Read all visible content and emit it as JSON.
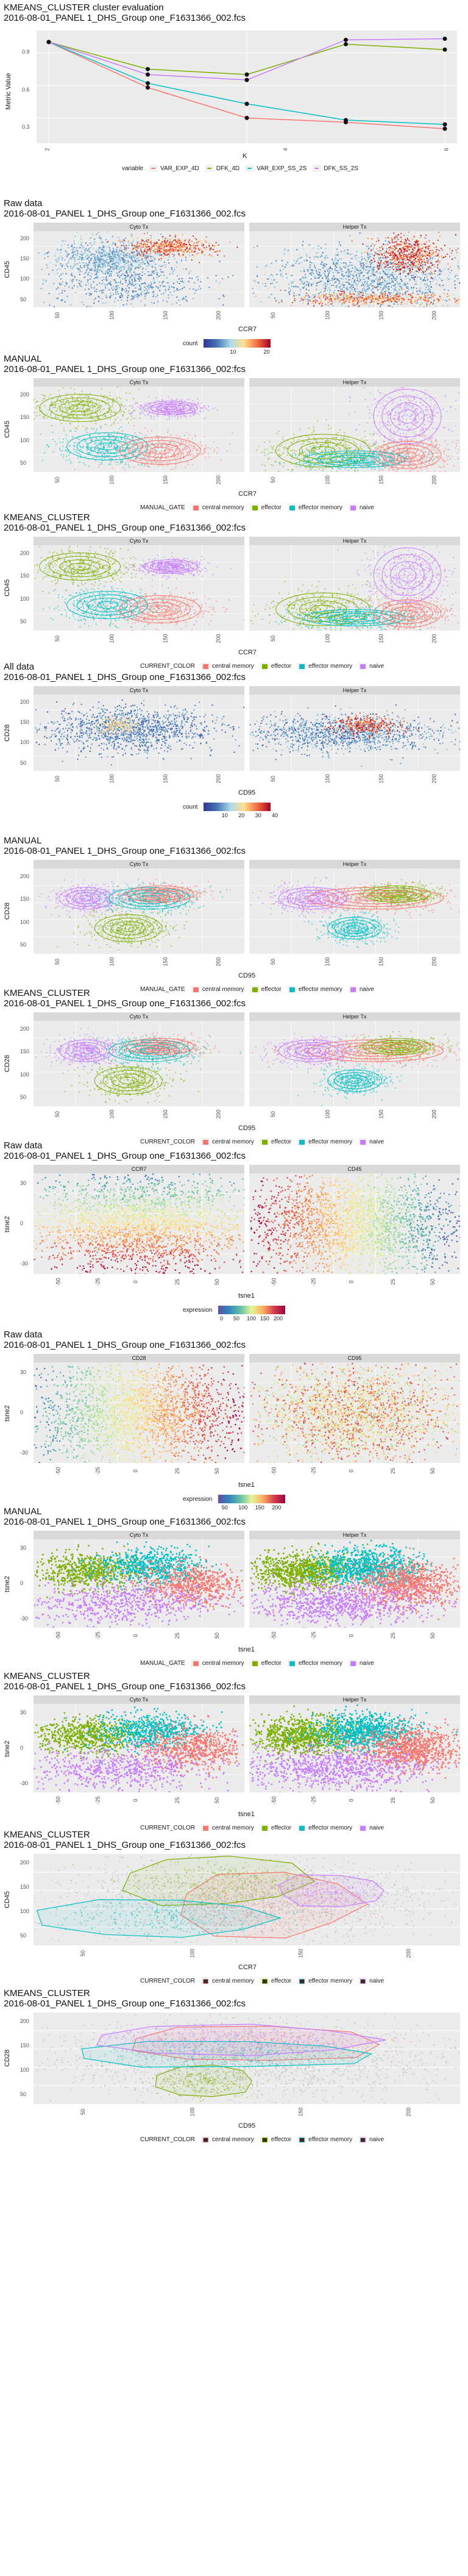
{
  "section1": {
    "title1": "KMEANS_CLUSTER cluster evaluation",
    "title2": "2016-08-01_PANEL 1_DHS_Group one_F1631366_002.fcs",
    "ylabel": "Metric Value",
    "xlabel": "K",
    "yticks": [
      "0.9",
      "0.6",
      "0.3"
    ],
    "xticks": [
      "2",
      "4",
      "6"
    ],
    "legend_title": "variable",
    "legend_items": [
      {
        "label": "VAR_EXP_4D",
        "color": "#f8766d"
      },
      {
        "label": "DFK_4D",
        "color": "#7cae00"
      },
      {
        "label": "VAR_EXP_SS_2S",
        "color": "#00bfc4"
      },
      {
        "label": "DFK_SS_2S",
        "color": "#c77cff"
      }
    ]
  },
  "chart_data": [
    {
      "type": "line",
      "title": "KMEANS_CLUSTER cluster evaluation",
      "xlabel": "K",
      "ylabel": "Metric Value",
      "x": [
        2,
        3,
        4,
        5,
        6
      ],
      "ylim": [
        0.15,
        1.05
      ],
      "series": [
        {
          "name": "VAR_EXP_4D",
          "values": [
            1.0,
            0.58,
            0.3,
            0.26,
            0.2
          ]
        },
        {
          "name": "DFK_4D",
          "values": [
            1.0,
            0.75,
            0.7,
            0.98,
            0.93
          ]
        },
        {
          "name": "VAR_EXP_SS_2S",
          "values": [
            1.0,
            0.62,
            0.43,
            0.28,
            0.24
          ]
        },
        {
          "name": "DFK_SS_2S",
          "values": [
            1.0,
            0.7,
            0.65,
            1.02,
            1.03
          ]
        }
      ]
    }
  ],
  "sections": [
    {
      "t1": "Raw data",
      "t2": "2016-08-01_PANEL 1_DHS_Group one_F1631366_002.fcs",
      "panels": [
        "Cyto Tx",
        "Helper Tx"
      ],
      "ylabel": "CD45",
      "xlabel": "CCR7",
      "legend_title": "count",
      "cbar_ticks": [
        "10",
        "20"
      ]
    },
    {
      "t1": "MANUAL",
      "t2": "2016-08-01_PANEL 1_DHS_Group one_F1631366_002:fcs",
      "panels": [
        "Cyto Tx",
        "Helper Tx"
      ],
      "ylabel": "CD45",
      "xlabel": "CCR7",
      "legend_title": "MANUAL_GATE"
    },
    {
      "t1": "KMEANS_CLUSTER",
      "t2": "2016-08-01_PANEL 1_DHS_Group one_F1631366_002:fcs",
      "panels": [
        "Cyto Tx",
        "Helper Tx"
      ],
      "ylabel": "CD45",
      "xlabel": "CCR7",
      "legend_title": "CURRENT_COLOR"
    },
    {
      "t1": "All data",
      "t2": "2016-08-01_PANEL 1_DHS_Group one_F1631366_002:fcs",
      "panels": [
        "Cyto Tx",
        "Helper Tx"
      ],
      "ylabel": "CD28",
      "xlabel": "CD95",
      "legend_title": "count",
      "cbar_ticks": [
        "10",
        "20",
        "30",
        "40"
      ]
    },
    {
      "t1": "MANUAL",
      "t2": "2016-08-01_PANEL 1_DHS_Group one_F1631366_002:fcs",
      "panels": [
        "Cyto Tx",
        "Helper Tx"
      ],
      "ylabel": "CD28",
      "xlabel": "CD95",
      "legend_title": "MANUAL_GATE"
    },
    {
      "t1": "KMEANS_CLUSTER",
      "t2": "2016-08-01_PANEL 1_DHS_Group one_F1631366_002:fcs",
      "panels": [
        "Cyto Tx",
        "Helper Tx"
      ],
      "ylabel": "CD28",
      "xlabel": "CD95",
      "legend_title": "CURRENT_COLOR"
    },
    {
      "t1": "Raw data",
      "t2": "2016-08-01_PANEL 1_DHS_Group one_F1631366_002:fcs",
      "panels": [
        "CCR7",
        "CD45"
      ],
      "ylabel": "tsne2",
      "xlabel": "tsne1",
      "legend_title": "expression",
      "cbar_ticks": [
        "0",
        "50",
        "100",
        "150",
        "200"
      ]
    },
    {
      "t1": "Raw data",
      "t2": "2016-08-01_PANEL 1_DHS_Group one_F1631366_002:fcs",
      "panels": [
        "CD28",
        "CD95"
      ],
      "ylabel": "tsne2",
      "xlabel": "tsne1",
      "legend_title": "expression",
      "cbar_ticks": [
        "50",
        "100",
        "150",
        "200"
      ]
    },
    {
      "t1": "MANUAL",
      "t2": "2016-08-01_PANEL 1_DHS_Group one_F1631366_002:fcs",
      "panels": [
        "Cyto Tx",
        "Helper Tx"
      ],
      "ylabel": "tsne2",
      "xlabel": "tsne1",
      "legend_title": "MANUAL_GATE"
    },
    {
      "t1": "KMEANS_CLUSTER",
      "t2": "2016-08-01_PANEL 1_DHS_Group one_F1631366_002:fcs",
      "panels": [
        "Cyto Tx",
        "Helper Tx"
      ],
      "ylabel": "tsne2",
      "xlabel": "tsne1",
      "legend_title": "CURRENT_COLOR"
    },
    {
      "t1": "KMEANS_CLUSTER",
      "t2": "2016-08-01_PANEL 1_DHS_Group one_F1631366_002:fcs",
      "panels": [],
      "ylabel": "CD45",
      "xlabel": "CCR7",
      "legend_title": "CURRENT_COLOR"
    },
    {
      "t1": "KMEANS_CLUSTER",
      "t2": "2016-08-01_PANEL 1_DHS_Group one_F1631366_002:fcs",
      "panels": [],
      "ylabel": "CD28",
      "xlabel": "CD95",
      "legend_title": "CURRENT_COLOR"
    }
  ],
  "population_legend": [
    {
      "label": "central memory",
      "color": "#f8766d"
    },
    {
      "label": "effector",
      "color": "#7cae00"
    },
    {
      "label": "effector memory",
      "color": "#00bfc4"
    },
    {
      "label": "naive",
      "color": "#c77cff"
    }
  ],
  "ticks": {
    "ccr7_cd45_y": [
      "200",
      "150",
      "100",
      "50"
    ],
    "ccr7_cd45_x": [
      "50",
      "100",
      "150",
      "200"
    ],
    "cd95_cd28_y": [
      "200",
      "150",
      "100",
      "50"
    ],
    "cd95_cd28_x": [
      "50",
      "100",
      "150",
      "200"
    ],
    "tsne_y": [
      "30",
      "0",
      "-30"
    ],
    "tsne_x": [
      "-50",
      "-25",
      "0",
      "25",
      "50"
    ]
  }
}
